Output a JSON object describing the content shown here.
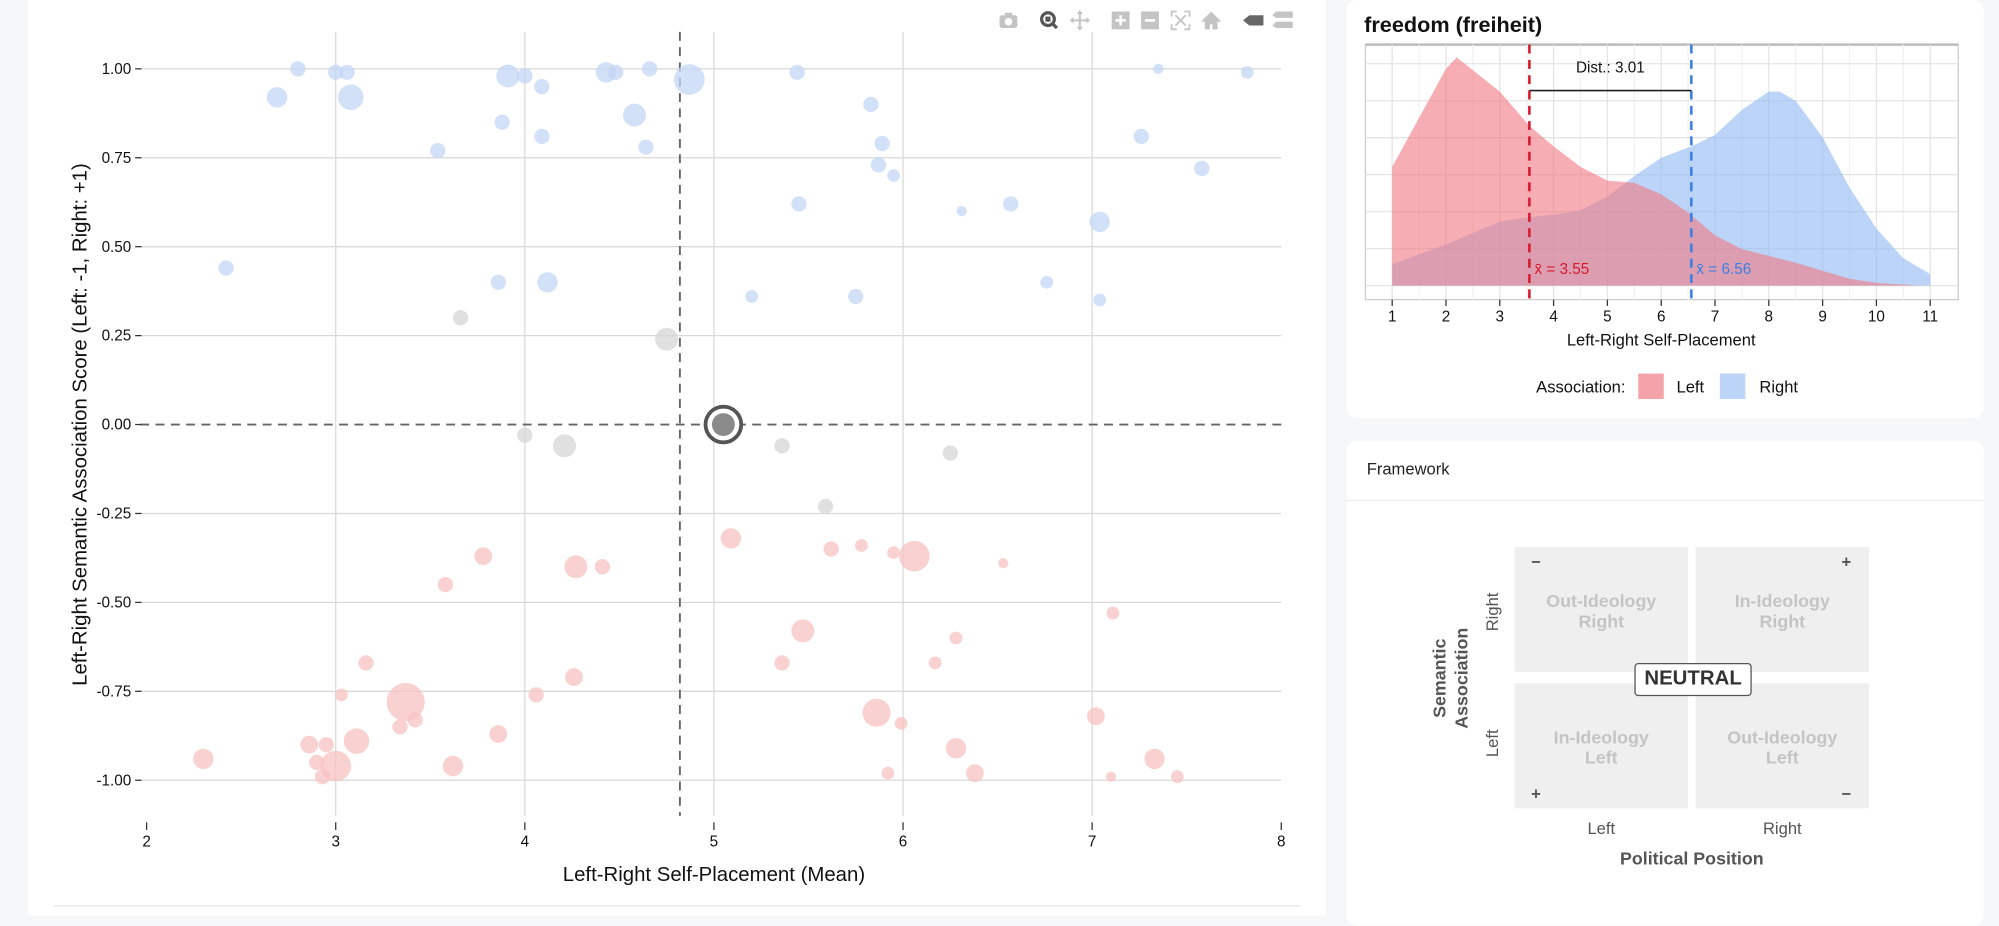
{
  "toolbar": {
    "icons": [
      "camera-icon",
      "zoom-icon",
      "pan-icon",
      "zoom-in-icon",
      "zoom-out-icon",
      "autoscale-icon",
      "home-icon",
      "hover-closest-icon",
      "hover-compare-icon"
    ]
  },
  "chart_data": [
    {
      "type": "scatter",
      "xlabel": "Left-Right Self-Placement (Mean)",
      "ylabel": "Left-Right Semantic Association Score (Left: -1, Right: +1)",
      "xlim": [
        2,
        8
      ],
      "ylim": [
        -1.1,
        1.1
      ],
      "xticks": [
        "2",
        "3",
        "4",
        "5",
        "6",
        "7",
        "8"
      ],
      "yticks": [
        "1.00",
        "0.75",
        "0.50",
        "0.25",
        "0.00",
        "-0.25",
        "-0.50",
        "-0.75",
        "-1.00"
      ],
      "grid": true,
      "reference_lines": {
        "vertical_x": 4.82,
        "horizontal_y": 0
      },
      "colors": {
        "right": "#c3d6f6",
        "neutral": "#d6d6d6",
        "left": "#f8c2c2",
        "highlight": "#8a8a8a"
      },
      "highlight": {
        "x": 5.05,
        "y": 0.0,
        "size": 14
      },
      "points": [
        {
          "x": 2.8,
          "y": 1.0,
          "s": 6,
          "c": "right"
        },
        {
          "x": 3.0,
          "y": 0.99,
          "s": 6,
          "c": "right"
        },
        {
          "x": 3.06,
          "y": 0.99,
          "s": 6,
          "c": "right"
        },
        {
          "x": 2.69,
          "y": 0.92,
          "s": 8,
          "c": "right"
        },
        {
          "x": 3.08,
          "y": 0.92,
          "s": 10,
          "c": "right"
        },
        {
          "x": 3.91,
          "y": 0.98,
          "s": 9,
          "c": "right"
        },
        {
          "x": 4.0,
          "y": 0.98,
          "s": 6,
          "c": "right"
        },
        {
          "x": 4.09,
          "y": 0.95,
          "s": 6,
          "c": "right"
        },
        {
          "x": 4.43,
          "y": 0.99,
          "s": 8,
          "c": "right"
        },
        {
          "x": 4.48,
          "y": 0.99,
          "s": 6,
          "c": "right"
        },
        {
          "x": 4.66,
          "y": 1.0,
          "s": 6,
          "c": "right"
        },
        {
          "x": 4.87,
          "y": 0.97,
          "s": 12,
          "c": "right"
        },
        {
          "x": 4.58,
          "y": 0.87,
          "s": 9,
          "c": "right"
        },
        {
          "x": 3.88,
          "y": 0.85,
          "s": 6,
          "c": "right"
        },
        {
          "x": 4.09,
          "y": 0.81,
          "s": 6,
          "c": "right"
        },
        {
          "x": 4.64,
          "y": 0.78,
          "s": 6,
          "c": "right"
        },
        {
          "x": 3.54,
          "y": 0.77,
          "s": 6,
          "c": "right"
        },
        {
          "x": 5.44,
          "y": 0.99,
          "s": 6,
          "c": "right"
        },
        {
          "x": 5.83,
          "y": 0.9,
          "s": 6,
          "c": "right"
        },
        {
          "x": 5.89,
          "y": 0.79,
          "s": 6,
          "c": "right"
        },
        {
          "x": 5.87,
          "y": 0.73,
          "s": 6,
          "c": "right"
        },
        {
          "x": 5.95,
          "y": 0.7,
          "s": 5,
          "c": "right"
        },
        {
          "x": 5.45,
          "y": 0.62,
          "s": 6,
          "c": "right"
        },
        {
          "x": 6.31,
          "y": 0.6,
          "s": 4,
          "c": "right"
        },
        {
          "x": 6.57,
          "y": 0.62,
          "s": 6,
          "c": "right"
        },
        {
          "x": 7.04,
          "y": 0.57,
          "s": 8,
          "c": "right"
        },
        {
          "x": 7.26,
          "y": 0.81,
          "s": 6,
          "c": "right"
        },
        {
          "x": 7.35,
          "y": 1.0,
          "s": 4,
          "c": "right"
        },
        {
          "x": 7.58,
          "y": 0.72,
          "s": 6,
          "c": "right"
        },
        {
          "x": 7.82,
          "y": 0.99,
          "s": 5,
          "c": "right"
        },
        {
          "x": 2.42,
          "y": 0.44,
          "s": 6,
          "c": "right"
        },
        {
          "x": 3.86,
          "y": 0.4,
          "s": 6,
          "c": "right"
        },
        {
          "x": 4.12,
          "y": 0.4,
          "s": 8,
          "c": "right"
        },
        {
          "x": 5.2,
          "y": 0.36,
          "s": 5,
          "c": "right"
        },
        {
          "x": 5.75,
          "y": 0.36,
          "s": 6,
          "c": "right"
        },
        {
          "x": 6.76,
          "y": 0.4,
          "s": 5,
          "c": "right"
        },
        {
          "x": 7.04,
          "y": 0.35,
          "s": 5,
          "c": "right"
        },
        {
          "x": 3.66,
          "y": 0.3,
          "s": 6,
          "c": "neutral"
        },
        {
          "x": 4.75,
          "y": 0.24,
          "s": 9,
          "c": "neutral"
        },
        {
          "x": 4.0,
          "y": -0.03,
          "s": 6,
          "c": "neutral"
        },
        {
          "x": 4.21,
          "y": -0.06,
          "s": 9,
          "c": "neutral"
        },
        {
          "x": 5.36,
          "y": -0.06,
          "s": 6,
          "c": "neutral"
        },
        {
          "x": 6.25,
          "y": -0.08,
          "s": 6,
          "c": "neutral"
        },
        {
          "x": 5.59,
          "y": -0.23,
          "s": 6,
          "c": "neutral"
        },
        {
          "x": 5.09,
          "y": -0.32,
          "s": 8,
          "c": "left"
        },
        {
          "x": 3.78,
          "y": -0.37,
          "s": 7,
          "c": "left"
        },
        {
          "x": 4.27,
          "y": -0.4,
          "s": 9,
          "c": "left"
        },
        {
          "x": 4.41,
          "y": -0.4,
          "s": 6,
          "c": "left"
        },
        {
          "x": 5.62,
          "y": -0.35,
          "s": 6,
          "c": "left"
        },
        {
          "x": 5.78,
          "y": -0.34,
          "s": 5,
          "c": "left"
        },
        {
          "x": 5.95,
          "y": -0.36,
          "s": 5,
          "c": "left"
        },
        {
          "x": 6.06,
          "y": -0.37,
          "s": 12,
          "c": "left"
        },
        {
          "x": 6.53,
          "y": -0.39,
          "s": 4,
          "c": "left"
        },
        {
          "x": 3.58,
          "y": -0.45,
          "s": 6,
          "c": "left"
        },
        {
          "x": 7.11,
          "y": -0.53,
          "s": 5,
          "c": "left"
        },
        {
          "x": 5.47,
          "y": -0.58,
          "s": 9,
          "c": "left"
        },
        {
          "x": 6.28,
          "y": -0.6,
          "s": 5,
          "c": "left"
        },
        {
          "x": 5.36,
          "y": -0.67,
          "s": 6,
          "c": "left"
        },
        {
          "x": 6.17,
          "y": -0.67,
          "s": 5,
          "c": "left"
        },
        {
          "x": 3.16,
          "y": -0.67,
          "s": 6,
          "c": "left"
        },
        {
          "x": 4.26,
          "y": -0.71,
          "s": 7,
          "c": "left"
        },
        {
          "x": 3.03,
          "y": -0.76,
          "s": 5,
          "c": "left"
        },
        {
          "x": 3.37,
          "y": -0.78,
          "s": 15,
          "c": "left"
        },
        {
          "x": 4.06,
          "y": -0.76,
          "s": 6,
          "c": "left"
        },
        {
          "x": 3.34,
          "y": -0.85,
          "s": 6,
          "c": "left"
        },
        {
          "x": 3.42,
          "y": -0.83,
          "s": 6,
          "c": "left"
        },
        {
          "x": 3.86,
          "y": -0.87,
          "s": 7,
          "c": "left"
        },
        {
          "x": 5.86,
          "y": -0.81,
          "s": 11,
          "c": "left"
        },
        {
          "x": 5.99,
          "y": -0.84,
          "s": 5,
          "c": "left"
        },
        {
          "x": 7.02,
          "y": -0.82,
          "s": 7,
          "c": "left"
        },
        {
          "x": 2.86,
          "y": -0.9,
          "s": 7,
          "c": "left"
        },
        {
          "x": 2.95,
          "y": -0.9,
          "s": 6,
          "c": "left"
        },
        {
          "x": 3.11,
          "y": -0.89,
          "s": 10,
          "c": "left"
        },
        {
          "x": 2.3,
          "y": -0.94,
          "s": 8,
          "c": "left"
        },
        {
          "x": 2.9,
          "y": -0.95,
          "s": 6,
          "c": "left"
        },
        {
          "x": 3.0,
          "y": -0.96,
          "s": 12,
          "c": "left"
        },
        {
          "x": 2.93,
          "y": -0.99,
          "s": 6,
          "c": "left"
        },
        {
          "x": 3.62,
          "y": -0.96,
          "s": 8,
          "c": "left"
        },
        {
          "x": 6.28,
          "y": -0.91,
          "s": 8,
          "c": "left"
        },
        {
          "x": 7.33,
          "y": -0.94,
          "s": 8,
          "c": "left"
        },
        {
          "x": 6.38,
          "y": -0.98,
          "s": 7,
          "c": "left"
        },
        {
          "x": 5.92,
          "y": -0.98,
          "s": 5,
          "c": "left"
        },
        {
          "x": 7.1,
          "y": -0.99,
          "s": 4,
          "c": "left"
        },
        {
          "x": 7.45,
          "y": -0.99,
          "s": 5,
          "c": "left"
        }
      ]
    },
    {
      "type": "area",
      "title": "freedom (freiheit)",
      "xlabel": "Left-Right Self-Placement",
      "xlim": [
        1,
        11
      ],
      "xticks": [
        "1",
        "2",
        "3",
        "4",
        "5",
        "6",
        "7",
        "8",
        "9",
        "10",
        "11"
      ],
      "grid": true,
      "legend": {
        "title": "Association:",
        "placement": "bottom"
      },
      "annotation": "Dist.: 3.01",
      "series": [
        {
          "name": "Left",
          "color": "#f4a3a8",
          "mean": 3.55,
          "mean_label": "x̄ = 3.55",
          "mean_color": "#d7192c",
          "x": [
            1,
            2,
            2.2,
            3,
            3.55,
            4,
            4.5,
            5,
            5.5,
            6,
            6.5,
            7,
            7.5,
            8,
            8.5,
            9,
            9.5,
            10,
            10.8
          ],
          "density": [
            0.52,
            0.95,
            1.0,
            0.85,
            0.7,
            0.61,
            0.52,
            0.46,
            0.45,
            0.4,
            0.32,
            0.22,
            0.16,
            0.13,
            0.1,
            0.065,
            0.03,
            0.012,
            0
          ]
        },
        {
          "name": "Right",
          "color": "#a9c8f5",
          "mean": 6.56,
          "mean_label": "x̄ = 6.56",
          "mean_color": "#3b7fe6",
          "x": [
            1,
            2,
            3,
            3.55,
            4,
            4.5,
            5,
            5.5,
            6,
            6.56,
            7,
            7.5,
            8,
            8.2,
            8.5,
            9,
            9.5,
            10,
            10.5,
            11
          ],
          "density": [
            0.094,
            0.18,
            0.28,
            0.3,
            0.31,
            0.33,
            0.39,
            0.48,
            0.56,
            0.61,
            0.66,
            0.77,
            0.85,
            0.85,
            0.81,
            0.65,
            0.43,
            0.25,
            0.12,
            0.05
          ]
        }
      ]
    }
  ],
  "framework": {
    "title": "Framework",
    "quadrants": {
      "tl": [
        "Out-Ideology",
        "Right"
      ],
      "tr": [
        "In-Ideology",
        "Right"
      ],
      "bl": [
        "In-Ideology",
        "Left"
      ],
      "br": [
        "Out-Ideology",
        "Left"
      ]
    },
    "signs": {
      "tl": "−",
      "tr": "+",
      "bl": "+",
      "br": "−"
    },
    "neutral": "NEUTRAL",
    "y_title": [
      "Semantic",
      "Association"
    ],
    "y_labels": {
      "top": "Right",
      "bottom": "Left"
    },
    "x_labels": {
      "left": "Left",
      "right": "Right"
    },
    "x_title": "Political Position"
  }
}
